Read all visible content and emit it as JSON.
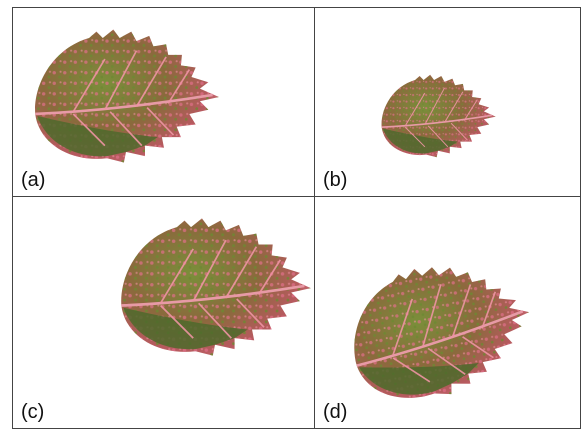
{
  "figure": {
    "panels": [
      {
        "id": "a",
        "label": "(a)",
        "content": "leaf-image"
      },
      {
        "id": "b",
        "label": "(b)",
        "content": "leaf-image"
      },
      {
        "id": "c",
        "label": "(c)",
        "content": "leaf-image"
      },
      {
        "id": "d",
        "label": "(d)",
        "content": "leaf-image"
      }
    ],
    "colors": {
      "leaf_green": "#5e7a34",
      "leaf_dark": "#3f5a26",
      "leaf_pink": "#d9607a",
      "leaf_red": "#c8455a",
      "border": "#444444"
    }
  }
}
